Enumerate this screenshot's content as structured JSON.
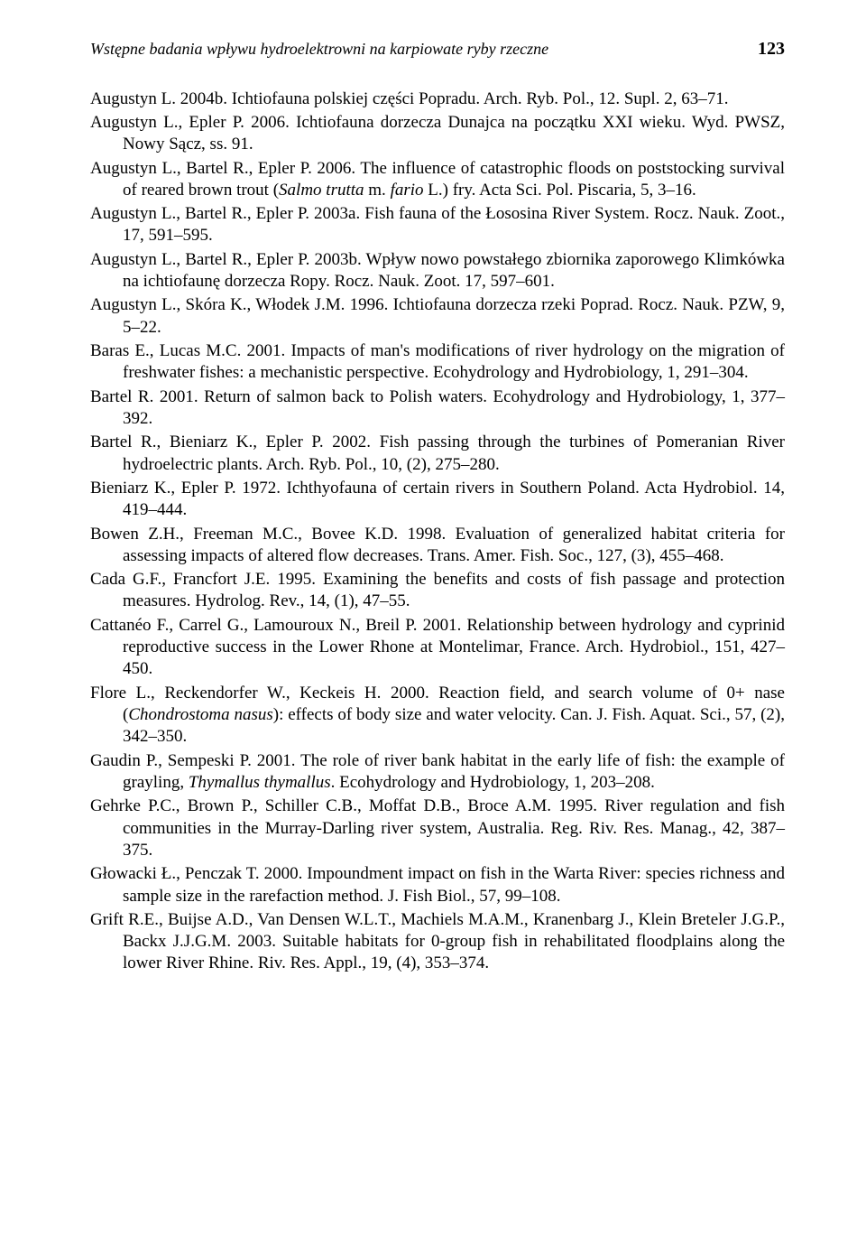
{
  "header": {
    "running_title": "Wstępne badania wpływu hydroelektrowni na karpiowate ryby rzeczne",
    "page_number": "123"
  },
  "refs": [
    {
      "html": "Augustyn L. 2004b. Ichtiofauna polskiej części Popradu. Arch. Ryb. Pol., 12. Supl. 2, 63–71."
    },
    {
      "html": "Augustyn L., Epler P. 2006. Ichtiofauna dorzecza Dunajca na początku XXI wieku. Wyd. PWSZ, Nowy Sącz, ss. 91."
    },
    {
      "html": "Augustyn L., Bartel R., Epler P. 2006. The influence of catastrophic floods on poststocking survival of reared brown trout (<span class=\"i\">Salmo trutta</span> m. <span class=\"i\">fario</span> L.) fry. Acta Sci. Pol. Piscaria, 5, 3–16."
    },
    {
      "html": "Augustyn L., Bartel R., Epler P. 2003a. Fish fauna of the Łososina River System. Rocz. Nauk. Zoot., 17, 591–595."
    },
    {
      "html": "Augustyn L., Bartel R., Epler P. 2003b. Wpływ nowo powstałego zbiornika zaporowego Klimkówka na ichtiofaunę dorzecza Ropy. Rocz. Nauk. Zoot. 17, 597–601."
    },
    {
      "html": "Augustyn L., Skóra K., Włodek J.M. 1996. Ichtiofauna dorzecza rzeki Poprad. Rocz. Nauk. PZW, 9, 5–22."
    },
    {
      "html": "Baras E., Lucas M.C. 2001. Impacts of man's modifications of river hydrology on the migration of freshwater fishes: a mechanistic perspective. Ecohydrology and Hydrobiology, 1, 291–304."
    },
    {
      "html": "Bartel R. 2001. Return of salmon back to Polish waters. Ecohydrology and Hydrobiology, 1, 377–392."
    },
    {
      "html": "Bartel R., Bieniarz K., Epler P. 2002. Fish passing through the turbines of Pomeranian River hydroelectric plants. Arch. Ryb. Pol., 10, (2), 275–280."
    },
    {
      "html": "Bieniarz K., Epler P. 1972. Ichthyofauna of certain rivers in Southern Poland. Acta Hydrobiol. 14, 419–444."
    },
    {
      "html": "Bowen Z.H., Freeman M.C., Bovee K.D. 1998. Evaluation of generalized habitat criteria for assessing impacts of altered flow decreases. Trans. Amer. Fish. Soc., 127, (3), 455–468."
    },
    {
      "html": "Cada G.F., Francfort J.E. 1995. Examining the benefits and costs of fish passage and protection measures. Hydrolog. Rev., 14, (1), 47–55."
    },
    {
      "html": "Cattanéo F., Carrel G., Lamouroux N., Breil P. 2001. Relationship between hydrology and cyprinid reproductive success in the Lower Rhone at Montelimar, France. Arch. Hydrobiol., 151, 427–450."
    },
    {
      "html": "Flore L., Reckendorfer W., Keckeis H. 2000. Reaction field, and search volume of 0+ nase (<span class=\"i\">Chondrostoma nasus</span>): effects of body size and water velocity. Can. J. Fish. Aquat. Sci., 57, (2), 342–350."
    },
    {
      "html": "Gaudin P., Sempeski P. 2001. The role of river bank habitat in the early life of fish: the example of grayling, <span class=\"i\">Thymallus thymallus</span>. Ecohydrology and Hydrobiology, 1, 203–208."
    },
    {
      "html": "Gehrke P.C., Brown P., Schiller C.B., Moffat D.B., Broce A.M. 1995. River regulation and fish communities in the Murray-Darling river system, Australia. Reg. Riv. Res. Manag., 42, 387–375."
    },
    {
      "html": "Głowacki Ł., Penczak T. 2000. Impoundment impact on fish in the Warta River: species richness and sample size in the rarefaction method. J. Fish Biol., 57, 99–108."
    },
    {
      "html": "Grift R.E., Buijse A.D., Van Densen W.L.T., Machiels M.A.M., Kranenbarg J., Klein Breteler J.G.P., Backx J.J.G.M. 2003. Suitable habitats for 0-group fish in rehabilitated floodplains along the lower River Rhine. Riv. Res. Appl., 19, (4), 353–374."
    }
  ]
}
